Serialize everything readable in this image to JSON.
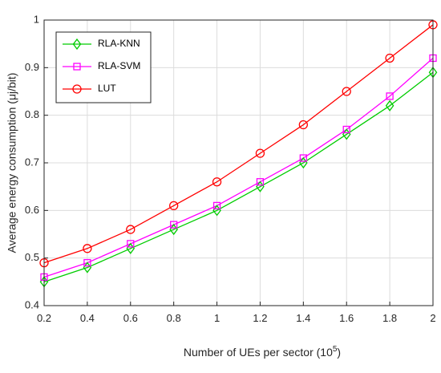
{
  "chart_data": {
    "type": "line",
    "title": "",
    "xlabel": "Number of UEs per sector (10",
    "xlabel_sup": "5",
    "xlabel_tail": ")",
    "ylabel": "Average energy consumption (μj/bit)",
    "x": [
      0.2,
      0.4,
      0.6,
      0.8,
      1.0,
      1.2,
      1.4,
      1.6,
      1.8,
      2.0
    ],
    "xlim": [
      0.2,
      2.0
    ],
    "ylim": [
      0.4,
      1.0
    ],
    "xticks": [
      "0.2",
      "0.4",
      "0.6",
      "0.8",
      "1",
      "1.2",
      "1.4",
      "1.6",
      "1.8",
      "2"
    ],
    "yticks": [
      "0.4",
      "0.5",
      "0.6",
      "0.7",
      "0.8",
      "0.9",
      "1"
    ],
    "grid": true,
    "legend_position": "top-left",
    "series": [
      {
        "name": "RLA-KNN",
        "color": "#00cc00",
        "marker": "diamond",
        "values": [
          0.45,
          0.48,
          0.52,
          0.56,
          0.6,
          0.65,
          0.7,
          0.76,
          0.82,
          0.89
        ]
      },
      {
        "name": "RLA-SVM",
        "color": "#ff00ff",
        "marker": "square",
        "values": [
          0.46,
          0.49,
          0.53,
          0.57,
          0.61,
          0.66,
          0.71,
          0.77,
          0.84,
          0.92
        ]
      },
      {
        "name": "LUT",
        "color": "#ff0000",
        "marker": "circle",
        "values": [
          0.49,
          0.52,
          0.56,
          0.61,
          0.66,
          0.72,
          0.78,
          0.85,
          0.92,
          0.99
        ]
      }
    ]
  }
}
